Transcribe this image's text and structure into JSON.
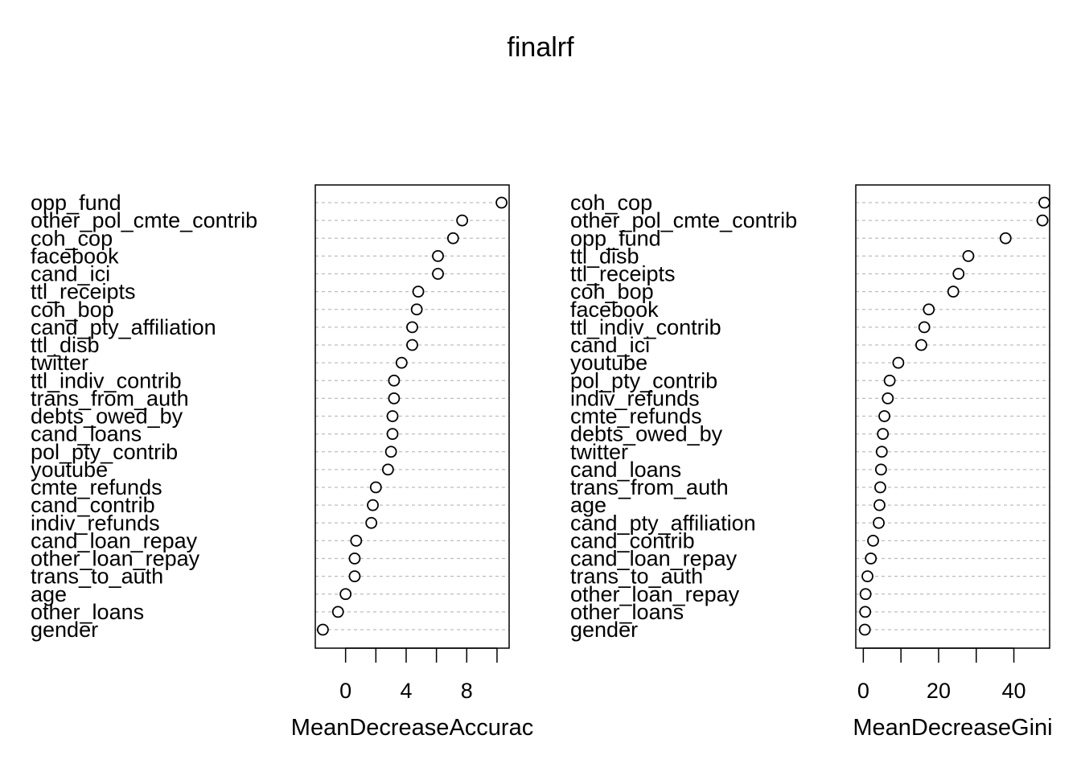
{
  "chart_data": {
    "title": "finalrf",
    "type": "dotchart",
    "panels": [
      {
        "xlabel": "MeanDecreaseAccurac",
        "xlim": [
          -2,
          10.8
        ],
        "xticks": [
          0,
          2,
          4,
          6,
          8,
          10
        ],
        "xtick_labels": [
          "0",
          "4",
          "8"
        ],
        "xtick_label_values": [
          0,
          4,
          8
        ],
        "variables": [
          "opp_fund",
          "other_pol_cmte_contrib",
          "coh_cop",
          "facebook",
          "cand_ici",
          "ttl_receipts",
          "coh_bop",
          "cand_pty_affiliation",
          "ttl_disb",
          "twitter",
          "ttl_indiv_contrib",
          "trans_from_auth",
          "debts_owed_by",
          "cand_loans",
          "pol_pty_contrib",
          "youtube",
          "cmte_refunds",
          "cand_contrib",
          "indiv_refunds",
          "cand_loan_repay",
          "other_loan_repay",
          "trans_to_auth",
          "age",
          "other_loans",
          "gender"
        ],
        "values": [
          10.3,
          7.7,
          7.1,
          6.1,
          6.1,
          4.8,
          4.7,
          4.4,
          4.4,
          3.7,
          3.2,
          3.2,
          3.1,
          3.1,
          3.0,
          2.8,
          2.0,
          1.8,
          1.7,
          0.7,
          0.6,
          0.6,
          0.0,
          -0.5,
          -1.5
        ]
      },
      {
        "xlabel": "MeanDecreaseGini",
        "xlim": [
          -2,
          49.5
        ],
        "xticks": [
          0,
          10,
          20,
          30,
          40
        ],
        "xtick_labels": [
          "0",
          "20",
          "40"
        ],
        "xtick_label_values": [
          0,
          20,
          40
        ],
        "variables": [
          "coh_cop",
          "other_pol_cmte_contrib",
          "opp_fund",
          "ttl_disb",
          "ttl_receipts",
          "coh_bop",
          "facebook",
          "ttl_indiv_contrib",
          "cand_ici",
          "youtube",
          "pol_pty_contrib",
          "indiv_refunds",
          "cmte_refunds",
          "debts_owed_by",
          "twitter",
          "cand_loans",
          "trans_from_auth",
          "age",
          "cand_pty_affiliation",
          "cand_contrib",
          "cand_loan_repay",
          "trans_to_auth",
          "other_loan_repay",
          "other_loans",
          "gender"
        ],
        "values": [
          48.1,
          47.6,
          37.8,
          27.9,
          25.3,
          23.9,
          17.4,
          16.2,
          15.4,
          9.3,
          7.0,
          6.5,
          5.6,
          5.2,
          4.9,
          4.7,
          4.5,
          4.3,
          4.1,
          2.6,
          2.0,
          1.1,
          0.6,
          0.5,
          0.4
        ]
      }
    ]
  }
}
